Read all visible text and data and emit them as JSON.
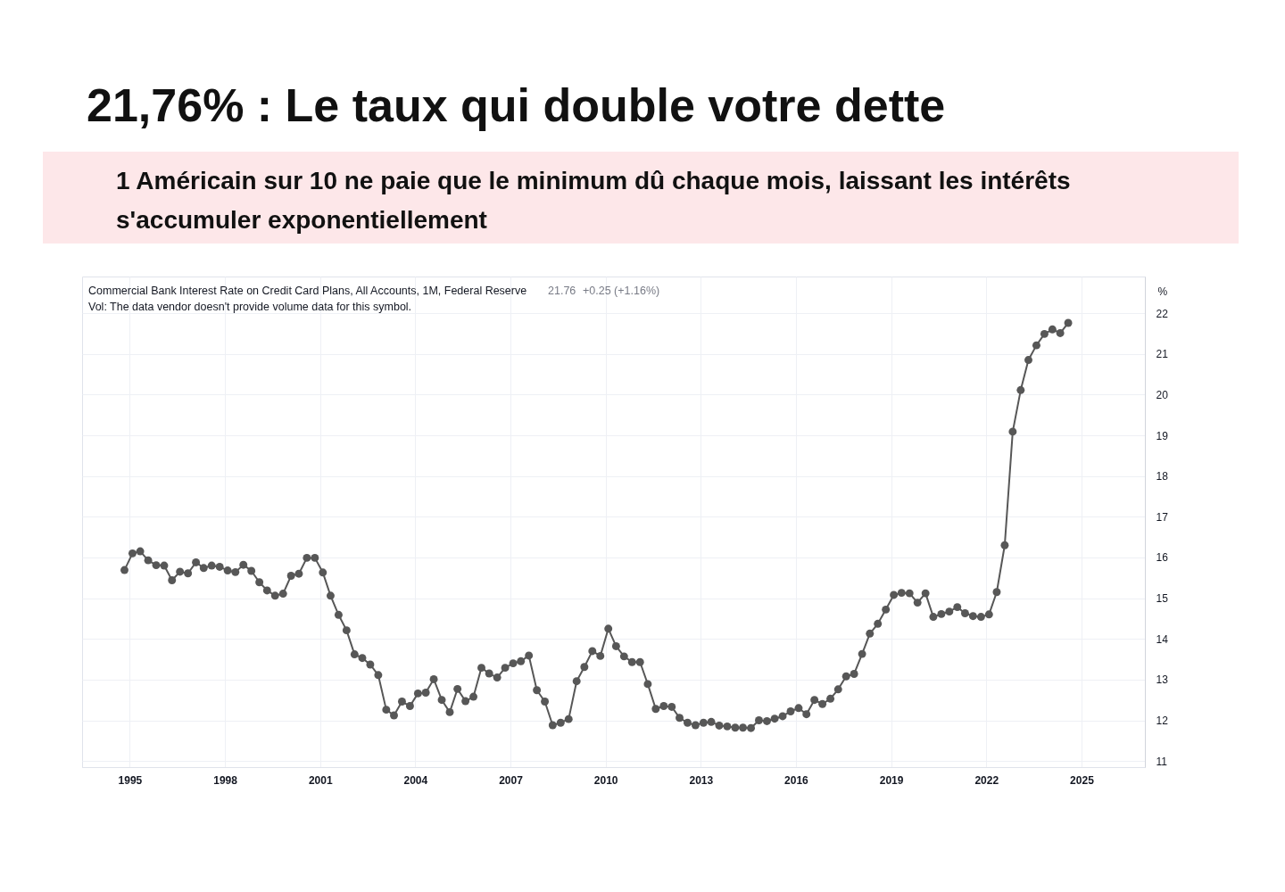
{
  "chart_data": {
    "type": "line",
    "title": "21,76% : Le taux qui double votre dette",
    "subtitle": "1 Américain sur 10 ne paie que le minimum dû chaque mois, laissant les intérêts s'accumuler exponentiellement",
    "ylabel": "%",
    "annotations": [
      "Commercial Bank Interest Rate on Credit Card Plans, All Accounts, 1M, Federal Reserve",
      "21.76",
      "+0.25 (+1.16%)",
      "Vol: The data vendor doesn't provide volume data for this symbol."
    ],
    "x": [
      "1994-11",
      "1995-02",
      "1995-05",
      "1995-08",
      "1995-11",
      "1996-02",
      "1996-05",
      "1996-08",
      "1996-11",
      "1997-02",
      "1997-05",
      "1997-08",
      "1997-11",
      "1998-02",
      "1998-05",
      "1998-08",
      "1998-11",
      "1999-02",
      "1999-05",
      "1999-08",
      "1999-11",
      "2000-02",
      "2000-05",
      "2000-08",
      "2000-11",
      "2001-02",
      "2001-05",
      "2001-08",
      "2001-11",
      "2002-02",
      "2002-05",
      "2002-08",
      "2002-11",
      "2003-02",
      "2003-05",
      "2003-08",
      "2003-11",
      "2004-02",
      "2004-05",
      "2004-08",
      "2004-11",
      "2005-02",
      "2005-05",
      "2005-08",
      "2005-11",
      "2006-02",
      "2006-05",
      "2006-08",
      "2006-11",
      "2007-02",
      "2007-05",
      "2007-08",
      "2007-11",
      "2008-02",
      "2008-05",
      "2008-08",
      "2008-11",
      "2009-02",
      "2009-05",
      "2009-08",
      "2009-11",
      "2010-02",
      "2010-05",
      "2010-08",
      "2010-11",
      "2011-02",
      "2011-05",
      "2011-08",
      "2011-11",
      "2012-02",
      "2012-05",
      "2012-08",
      "2012-11",
      "2013-02",
      "2013-05",
      "2013-08",
      "2013-11",
      "2014-02",
      "2014-05",
      "2014-08",
      "2014-11",
      "2015-02",
      "2015-05",
      "2015-08",
      "2015-11",
      "2016-02",
      "2016-05",
      "2016-08",
      "2016-11",
      "2017-02",
      "2017-05",
      "2017-08",
      "2017-11",
      "2018-02",
      "2018-05",
      "2018-08",
      "2018-11",
      "2019-02",
      "2019-05",
      "2019-08",
      "2019-11",
      "2020-02",
      "2020-05",
      "2020-08",
      "2020-11",
      "2021-02",
      "2021-05",
      "2021-08",
      "2021-11",
      "2022-02",
      "2022-05",
      "2022-08",
      "2022-11",
      "2023-02",
      "2023-05",
      "2023-08",
      "2023-11",
      "2024-02",
      "2024-05",
      "2024-08"
    ],
    "values": [
      15.69,
      16.1,
      16.15,
      15.93,
      15.81,
      15.8,
      15.44,
      15.65,
      15.61,
      15.88,
      15.74,
      15.8,
      15.77,
      15.68,
      15.64,
      15.82,
      15.67,
      15.39,
      15.19,
      15.06,
      15.11,
      15.55,
      15.6,
      15.99,
      15.99,
      15.63,
      15.06,
      14.59,
      14.21,
      13.62,
      13.53,
      13.37,
      13.11,
      12.26,
      12.12,
      12.46,
      12.35,
      12.66,
      12.68,
      13.01,
      12.5,
      12.2,
      12.77,
      12.47,
      12.58,
      13.29,
      13.15,
      13.05,
      13.29,
      13.4,
      13.45,
      13.59,
      12.74,
      12.46,
      11.88,
      11.94,
      12.03,
      12.96,
      13.31,
      13.7,
      13.58,
      14.25,
      13.82,
      13.57,
      13.43,
      13.43,
      12.89,
      12.28,
      12.35,
      12.33,
      12.06,
      11.94,
      11.88,
      11.94,
      11.96,
      11.87,
      11.85,
      11.82,
      11.82,
      11.81,
      12.0,
      11.98,
      12.04,
      12.1,
      12.22,
      12.3,
      12.15,
      12.5,
      12.4,
      12.53,
      12.76,
      13.08,
      13.14,
      13.63,
      14.13,
      14.37,
      14.72,
      15.08,
      15.13,
      15.12,
      14.89,
      15.12,
      14.54,
      14.61,
      14.67,
      14.78,
      14.63,
      14.56,
      14.54,
      14.6,
      15.15,
      16.3,
      19.09,
      20.11,
      20.85,
      21.21,
      21.49,
      21.6,
      21.51,
      21.76
    ],
    "color": "#575757",
    "xlim": [
      "1993-07",
      "2027-01"
    ],
    "xticks": [
      "1995",
      "1998",
      "2001",
      "2004",
      "2007",
      "2010",
      "2013",
      "2016",
      "2019",
      "2022",
      "2025"
    ],
    "ylim": [
      10.85,
      22.9
    ],
    "yticks": [
      11,
      12,
      13,
      14,
      15,
      16,
      17,
      18,
      19,
      20,
      21,
      22
    ],
    "grid": true,
    "marker": "circle",
    "line_style": "solid"
  }
}
